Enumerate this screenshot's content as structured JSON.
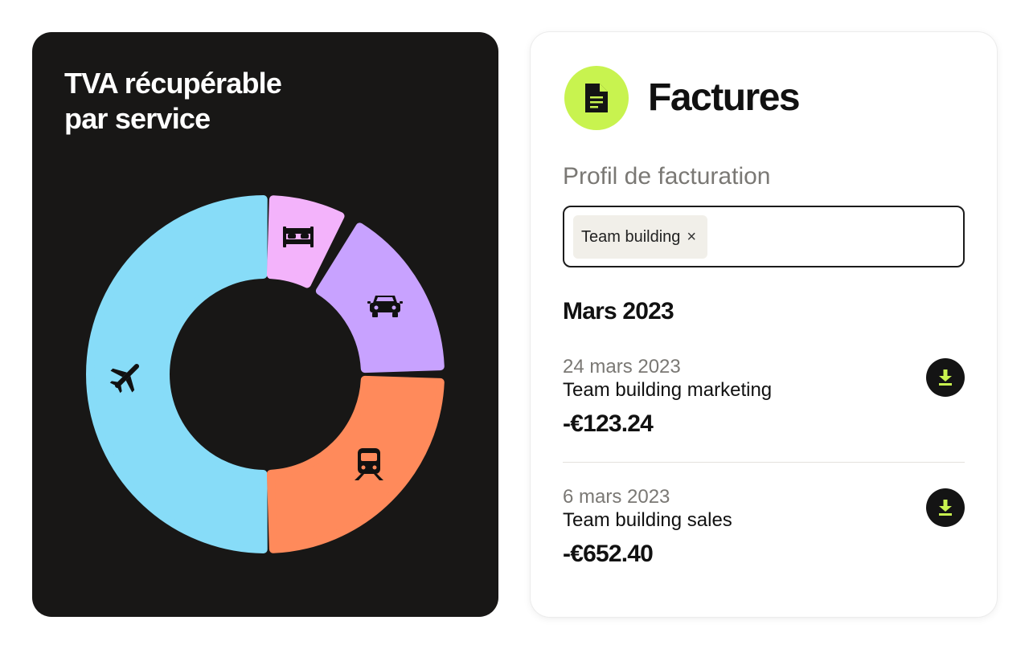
{
  "vat_card": {
    "title_line1": "TVA récupérable",
    "title_line2": "par service",
    "segments": [
      {
        "service": "Vol",
        "icon": "airplane-icon",
        "color": "#87dcf8"
      },
      {
        "service": "Hôtel",
        "icon": "bed-icon",
        "color": "#f3b3fb"
      },
      {
        "service": "Voiture",
        "icon": "car-icon",
        "color": "#c8a2ff"
      },
      {
        "service": "Train",
        "icon": "train-icon",
        "color": "#ff8a5b"
      }
    ]
  },
  "invoices_card": {
    "title": "Factures",
    "icon": "document-icon",
    "accent_color": "#c8f34f",
    "profile_label": "Profil de facturation",
    "profile_chip": "Team building",
    "chip_remove": "×",
    "month_heading": "Mars 2023",
    "items": [
      {
        "date": "24 mars 2023",
        "name": "Team building marketing",
        "amount": "-€123.24",
        "action_icon": "download-icon"
      },
      {
        "date": "6 mars 2023",
        "name": "Team building sales",
        "amount": "-€652.40",
        "action_icon": "download-icon"
      }
    ]
  }
}
